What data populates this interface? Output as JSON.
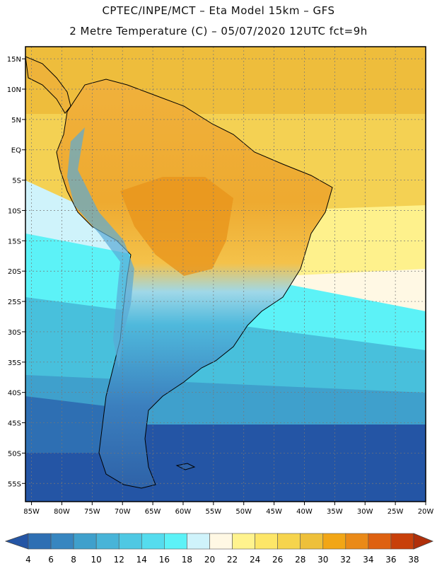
{
  "header": {
    "title_line1": "CPTEC/INPE/MCT –  Eta Model 15km – GFS",
    "title_line2": "2 Metre Temperature (C) – 05/07/2020 12UTC fct=9h"
  },
  "map": {
    "lat_labels": [
      "15N",
      "10N",
      "5N",
      "EQ",
      "5S",
      "10S",
      "15S",
      "20S",
      "25S",
      "30S",
      "35S",
      "40S",
      "45S",
      "50S",
      "55S"
    ],
    "lon_labels": [
      "85W",
      "80W",
      "75W",
      "70W",
      "65W",
      "60W",
      "55W",
      "50W",
      "45W",
      "40W",
      "35W",
      "30W",
      "25W",
      "20W"
    ],
    "lon_min": -86,
    "lon_max": -20,
    "lat_min": -58,
    "lat_max": 17
  },
  "colorbar": {
    "ticks": [
      "4",
      "6",
      "8",
      "10",
      "12",
      "14",
      "16",
      "18",
      "20",
      "22",
      "24",
      "26",
      "28",
      "30",
      "32",
      "34",
      "36",
      "38"
    ],
    "colors": [
      "#2455a5",
      "#2e6fb3",
      "#3786c0",
      "#3fa0cc",
      "#48b4d8",
      "#4fc8e3",
      "#55dcee",
      "#5cf2f7",
      "#cff3fb",
      "#fff8e4",
      "#fff38e",
      "#fde668",
      "#f6d44d",
      "#eec03a",
      "#f2a616",
      "#ea8a18",
      "#de6111",
      "#c8400a",
      "#b02f0a"
    ]
  }
}
